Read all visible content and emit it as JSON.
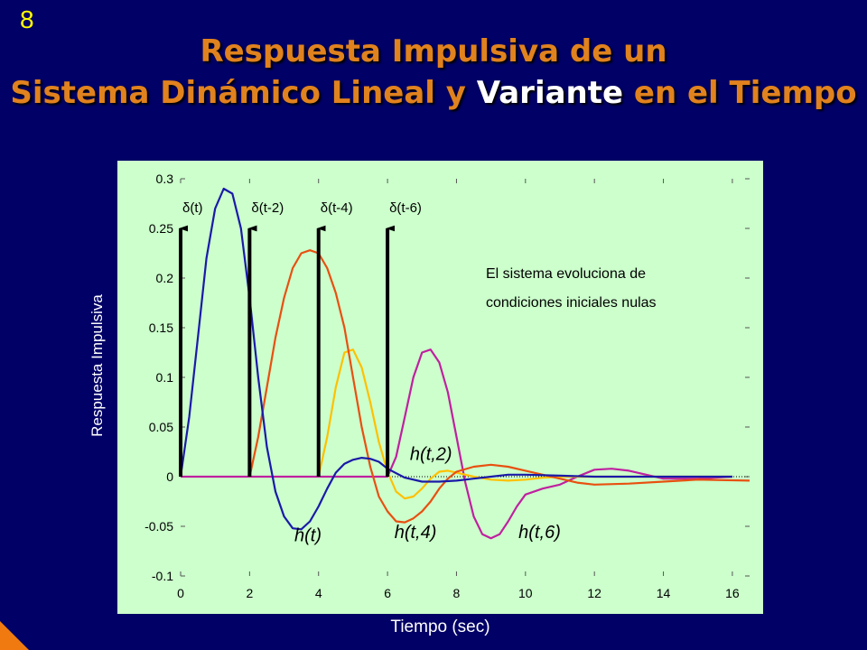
{
  "slide_number": "8",
  "title_line1": "Respuesta Impulsiva de un",
  "title_line2_a": "Sistema Dinámico Lineal y ",
  "title_line2_hl": "Variante",
  "title_line2_b": " en el Tiempo",
  "colors": {
    "background": "#000066",
    "title": "#e0821e",
    "plot_bg": "#ccffcc"
  },
  "chart_data": {
    "type": "line",
    "xlabel": "Tiempo (sec)",
    "ylabel": "Respuesta Impulsiva",
    "xlim": [
      0,
      16.5
    ],
    "ylim": [
      -0.1,
      0.3
    ],
    "xticks": [
      0,
      2,
      4,
      6,
      8,
      10,
      12,
      14,
      16
    ],
    "yticks": [
      -0.1,
      -0.05,
      0,
      0.05,
      0.1,
      0.15,
      0.2,
      0.25,
      0.3
    ],
    "ytick_labels": [
      "-0.1",
      "-0.05",
      "0",
      "0.05",
      "0.1",
      "0.15",
      "0.2",
      "0.25",
      "0.3"
    ],
    "impulses": [
      {
        "label": "δ(t)",
        "x": 0
      },
      {
        "label": "δ(t-2)",
        "x": 2
      },
      {
        "label": "δ(t-4)",
        "x": 4
      },
      {
        "label": "δ(t-6)",
        "x": 6
      }
    ],
    "impulse_top": 0.25,
    "series": [
      {
        "name": "h(t)",
        "color": "#1a1aa8",
        "x": [
          0,
          0.25,
          0.5,
          0.75,
          1,
          1.25,
          1.5,
          1.75,
          2,
          2.25,
          2.5,
          2.75,
          3,
          3.25,
          3.5,
          3.75,
          4,
          4.25,
          4.5,
          4.75,
          5,
          5.25,
          5.5,
          5.75,
          6,
          6.5,
          7,
          7.5,
          8,
          8.5,
          9,
          9.5,
          10,
          11,
          12,
          13,
          14,
          15,
          16
        ],
        "y": [
          0,
          0.06,
          0.14,
          0.22,
          0.27,
          0.29,
          0.285,
          0.25,
          0.18,
          0.1,
          0.03,
          -0.015,
          -0.04,
          -0.052,
          -0.053,
          -0.045,
          -0.03,
          -0.012,
          0.004,
          0.013,
          0.017,
          0.019,
          0.018,
          0.015,
          0.008,
          -0.001,
          -0.005,
          -0.005,
          -0.004,
          -0.002,
          0,
          0.002,
          0.002,
          0.001,
          0,
          0,
          0,
          0,
          0
        ]
      },
      {
        "name": "h(t,2)",
        "color": "#e85010",
        "x": [
          2,
          2.25,
          2.5,
          2.75,
          3,
          3.25,
          3.5,
          3.75,
          4,
          4.25,
          4.5,
          4.75,
          5,
          5.25,
          5.5,
          5.75,
          6,
          6.25,
          6.5,
          6.75,
          7,
          7.25,
          7.5,
          7.75,
          8,
          8.5,
          9,
          9.5,
          10,
          10.5,
          11,
          11.5,
          12,
          13,
          14,
          15,
          16.5
        ],
        "y": [
          0,
          0.04,
          0.09,
          0.14,
          0.18,
          0.21,
          0.225,
          0.228,
          0.225,
          0.21,
          0.185,
          0.15,
          0.1,
          0.05,
          0.01,
          -0.02,
          -0.035,
          -0.045,
          -0.046,
          -0.042,
          -0.035,
          -0.025,
          -0.012,
          -0.002,
          0.005,
          0.01,
          0.012,
          0.01,
          0.006,
          0.002,
          -0.002,
          -0.006,
          -0.008,
          -0.007,
          -0.005,
          -0.003,
          -0.004
        ]
      },
      {
        "name": "h(t,4)",
        "color": "#ffc000",
        "x": [
          4,
          4.25,
          4.5,
          4.75,
          5,
          5.25,
          5.5,
          5.75,
          6,
          6.25,
          6.5,
          6.75,
          7,
          7.25,
          7.5,
          7.75,
          8,
          8.5,
          9,
          9.5,
          10,
          10.5,
          11,
          12,
          13,
          14,
          15,
          16
        ],
        "y": [
          0,
          0.04,
          0.09,
          0.125,
          0.128,
          0.11,
          0.075,
          0.035,
          0.005,
          -0.015,
          -0.022,
          -0.02,
          -0.012,
          -0.002,
          0.005,
          0.006,
          0.004,
          0,
          -0.003,
          -0.004,
          -0.003,
          -0.001,
          0,
          0,
          0,
          0,
          0,
          0
        ]
      },
      {
        "name": "h(t,6)",
        "color": "#c020a0",
        "x": [
          0,
          6,
          6.25,
          6.5,
          6.75,
          7,
          7.25,
          7.5,
          7.75,
          8,
          8.25,
          8.5,
          8.75,
          9,
          9.25,
          9.5,
          9.75,
          10,
          10.5,
          11,
          11.5,
          12,
          12.5,
          13,
          13.5,
          14,
          15,
          16
        ],
        "y": [
          0,
          0,
          0.02,
          0.06,
          0.1,
          0.125,
          0.128,
          0.115,
          0.085,
          0.04,
          -0.005,
          -0.04,
          -0.058,
          -0.062,
          -0.058,
          -0.045,
          -0.03,
          -0.018,
          -0.012,
          -0.008,
          0,
          0.007,
          0.008,
          0.006,
          0.002,
          -0.002,
          -0.002,
          0
        ]
      }
    ],
    "annotations": [
      {
        "text": "h(t)",
        "x": 3.3,
        "y": -0.065
      },
      {
        "text": "h(t,4)",
        "x": 6.2,
        "y": -0.062
      },
      {
        "text": "h(t,6)",
        "x": 9.8,
        "y": -0.062
      },
      {
        "text": "h(t,2)",
        "x": 6.65,
        "y": 0.017
      }
    ],
    "note_line1": "El sistema evoluciona de",
    "note_line2": "condiciones iniciales nulas"
  }
}
